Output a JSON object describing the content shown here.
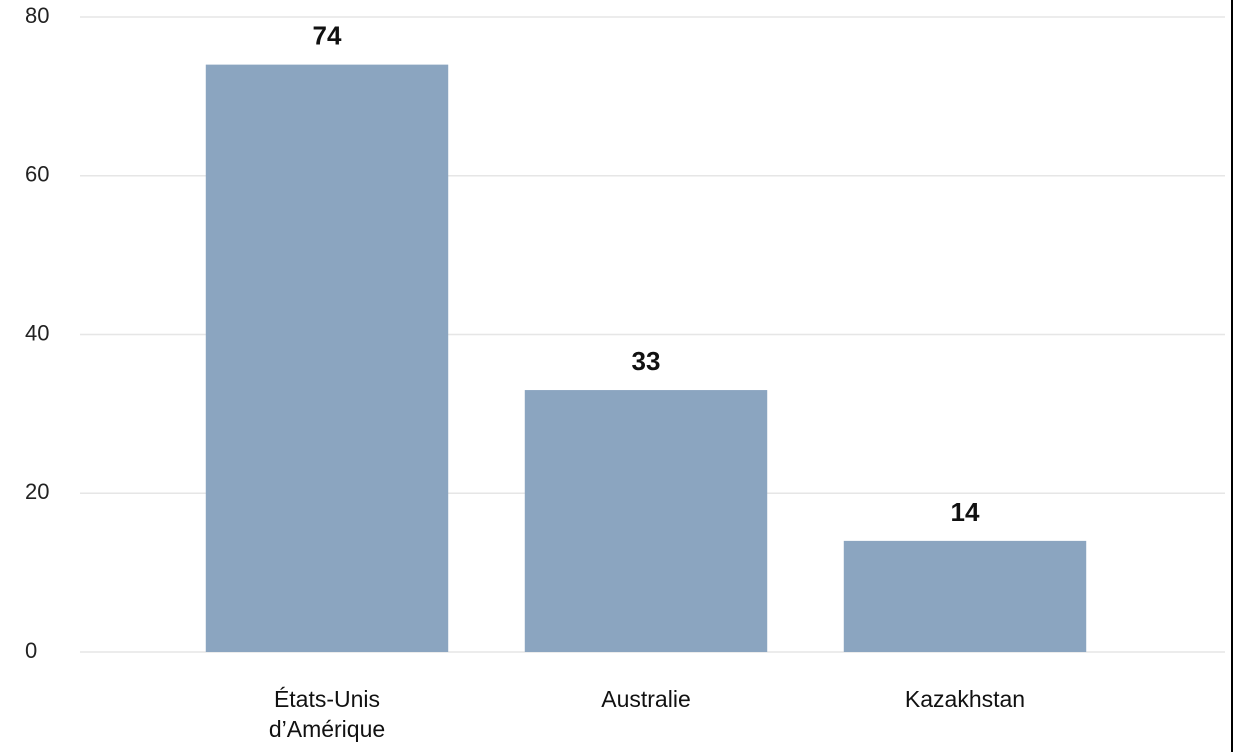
{
  "chart_data": {
    "type": "bar",
    "categories": [
      "États-Unis d’Amérique",
      "Australie",
      "Kazakhstan"
    ],
    "values": [
      74,
      33,
      14
    ],
    "color": "#8ba5c0",
    "ylim": [
      0,
      80
    ],
    "yticks": [
      0,
      20,
      40,
      60,
      80
    ],
    "grid": true
  }
}
